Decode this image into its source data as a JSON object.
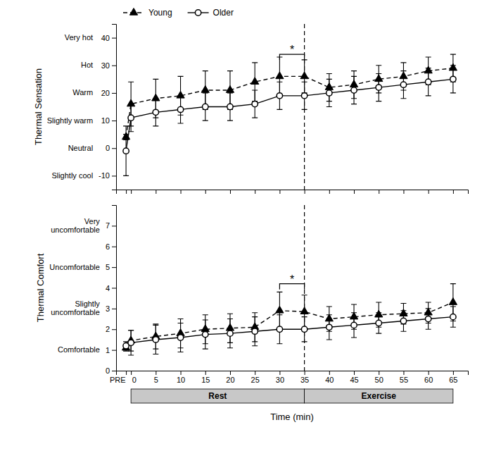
{
  "chart_data": [
    {
      "type": "line",
      "y_label": "Thermal Sensation",
      "tick_labels": "y",
      "legend": "upper left",
      "x": [
        -1,
        0,
        5,
        10,
        15,
        20,
        25,
        30,
        35,
        40,
        45,
        50,
        55,
        60,
        65
      ],
      "xlim": [
        -3,
        68
      ],
      "xticks": [
        {
          "value": -1,
          "label": "PRE"
        },
        0,
        5,
        10,
        15,
        20,
        25,
        30,
        35,
        40,
        45,
        50,
        55,
        60,
        65
      ],
      "ylim": [
        -15,
        45
      ],
      "yticks": [
        -10,
        0,
        10,
        20,
        30,
        40
      ],
      "series": [
        {
          "name": "Young",
          "color": "black",
          "marker": "triangle",
          "line_style": "dashed",
          "values": [
            4,
            16,
            18,
            19,
            21,
            21,
            24,
            26,
            26,
            22,
            23,
            25,
            26,
            28,
            29
          ],
          "errors": [
            1,
            8,
            7,
            7,
            7,
            7,
            7,
            7,
            6,
            5,
            5,
            5,
            5,
            5,
            5
          ]
        },
        {
          "name": "Older",
          "color": "black",
          "marker": "open-circle",
          "line_style": "solid",
          "values": [
            -1,
            11,
            13,
            14,
            15,
            15,
            16,
            19,
            19,
            20,
            21,
            22,
            23,
            24,
            25
          ],
          "errors": [
            9,
            5,
            5,
            5,
            5,
            5,
            5,
            5,
            5,
            5,
            5,
            5,
            5,
            5,
            5
          ]
        }
      ],
      "reference_lines": [
        {
          "x": 35,
          "line_style": "dashed"
        }
      ],
      "annotations": [
        {
          "text": "Slightly cool",
          "y": -10
        },
        {
          "text": "Neutral",
          "y": 0
        },
        {
          "text": "Slightly warm",
          "y": 10
        },
        {
          "text": "Warm",
          "y": 20
        },
        {
          "text": "Hot",
          "y": 30
        },
        {
          "text": "Very hot",
          "y": 40
        },
        {
          "text": "*",
          "x": [
            30,
            35
          ],
          "y": 34
        }
      ]
    },
    {
      "type": "line",
      "y_label": "Thermal Comfort",
      "x_label": "Time (min)",
      "x": [
        -1,
        0,
        5,
        10,
        15,
        20,
        25,
        30,
        35,
        40,
        45,
        50,
        55,
        60,
        65
      ],
      "xlim": [
        -3,
        68
      ],
      "xticks": [
        {
          "value": -1,
          "label": "PRE"
        },
        0,
        5,
        10,
        15,
        20,
        25,
        30,
        35,
        40,
        45,
        50,
        55,
        60,
        65
      ],
      "ylim": [
        0,
        8
      ],
      "yticks": [
        0,
        1,
        2,
        3,
        4,
        5,
        6,
        7
      ],
      "series": [
        {
          "color": "black",
          "marker": "triangle",
          "line_style": "dashed",
          "values": [
            1.1,
            1.45,
            1.65,
            1.8,
            2.0,
            2.05,
            2.1,
            2.9,
            2.85,
            2.5,
            2.6,
            2.7,
            2.75,
            2.8,
            3.3
          ],
          "errors": [
            0.15,
            0.5,
            0.6,
            0.7,
            0.7,
            0.7,
            0.7,
            0.9,
            0.8,
            0.6,
            0.6,
            0.6,
            0.5,
            0.5,
            0.9
          ]
        },
        {
          "color": "black",
          "marker": "open-circle",
          "line_style": "solid",
          "values": [
            1.2,
            1.35,
            1.5,
            1.6,
            1.75,
            1.8,
            1.9,
            2.0,
            2.0,
            2.1,
            2.2,
            2.3,
            2.4,
            2.5,
            2.6
          ],
          "errors": [
            0.2,
            0.6,
            0.7,
            0.7,
            0.7,
            0.7,
            0.7,
            0.7,
            0.6,
            0.6,
            0.6,
            0.5,
            0.5,
            0.5,
            0.5
          ]
        }
      ],
      "reference_lines": [
        {
          "x": 35,
          "line_style": "dashed"
        }
      ],
      "annotations": [
        {
          "text": "Comfortable",
          "y": 1
        },
        {
          "text": "Slightly\nuncomfortable",
          "y": 3
        },
        {
          "text": "Uncomfortable",
          "y": 5
        },
        {
          "text": "Very\nuncomfortable",
          "y": 7
        },
        {
          "text": "*",
          "x": [
            30,
            35
          ],
          "y": 4.2
        }
      ],
      "phases": [
        {
          "text": "Rest",
          "x": [
            0,
            35
          ],
          "color": "#c8c8c8"
        },
        {
          "text": "Exercise",
          "x": [
            35,
            65
          ],
          "color": "#c8c8c8"
        }
      ]
    }
  ]
}
